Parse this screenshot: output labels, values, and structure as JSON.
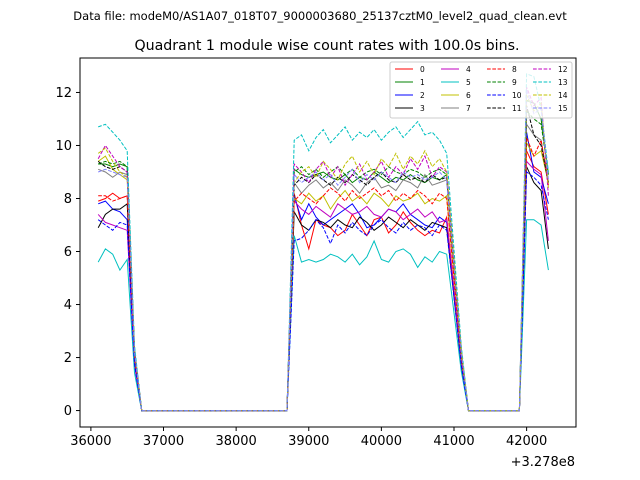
{
  "figure": {
    "suptitle": "Data file: modeM0/AS1A07_018T07_9000003680_25137cztM0_level2_quad_clean.evt",
    "title": "Quadrant 1 module wise count rates with 100.0s bins.",
    "x_offset_label": "+3.278e8"
  },
  "chart_data": {
    "type": "line",
    "title": "Quadrant 1 module wise count rates with 100.0s bins.",
    "xlabel": "",
    "ylabel": "",
    "x_offset": 327800000,
    "xlim": [
      35850,
      42680
    ],
    "ylim": [
      -0.62,
      13.3
    ],
    "x_ticks": [
      36000,
      37000,
      38000,
      39000,
      40000,
      41000,
      42000
    ],
    "x_tick_labels": [
      "36000",
      "37000",
      "38000",
      "39000",
      "40000",
      "41000",
      "42000"
    ],
    "y_ticks": [
      0,
      2,
      4,
      6,
      8,
      10,
      12
    ],
    "y_tick_labels": [
      "0",
      "2",
      "4",
      "6",
      "8",
      "10",
      "12"
    ],
    "grid": false,
    "legend_position": "top-right",
    "segments": [
      {
        "start": 36100,
        "n_before": 5,
        "drop": [
          36600,
          36700
        ],
        "zero_end": 38700,
        "rise": 38800,
        "n_mid": 22,
        "drop2": [
          41100,
          41200
        ],
        "zero2_end": 41900,
        "rise2": 42000,
        "n_end": 4
      },
      {
        "note": ""
      }
    ],
    "series": [
      {
        "name": "0",
        "color": "#ff0000",
        "dash": "solid",
        "values": {
          "a": [
            7.9,
            8.0,
            8.2,
            8.0,
            8.1
          ],
          "b": [
            8.2,
            7.0,
            6.1,
            7.2,
            7.0,
            6.9,
            6.6,
            6.8,
            7.4,
            7.0,
            6.6,
            7.2,
            7.3,
            6.7,
            7.0,
            7.5,
            7.1,
            6.8,
            6.6,
            6.8,
            6.7,
            7.3
          ],
          "c": [
            9.8,
            9.2,
            9.0,
            7.4
          ]
        }
      },
      {
        "name": "1",
        "color": "#008000",
        "dash": "solid",
        "values": {
          "a": [
            9.3,
            9.3,
            9.2,
            9.3,
            9.2
          ],
          "b": [
            9.1,
            8.9,
            8.8,
            8.9,
            9.0,
            8.8,
            8.7,
            8.9,
            8.6,
            8.8,
            8.7,
            9.0,
            8.8,
            8.6,
            8.8,
            8.7,
            8.9,
            8.7,
            8.6,
            8.8,
            8.7,
            8.9
          ],
          "c": [
            11.7,
            11.6,
            11.0,
            8.9
          ]
        }
      },
      {
        "name": "2",
        "color": "#0000ff",
        "dash": "solid",
        "values": {
          "a": [
            7.8,
            7.9,
            7.6,
            7.5,
            7.2
          ],
          "b": [
            8.1,
            7.2,
            7.8,
            7.3,
            7.0,
            7.2,
            7.4,
            7.6,
            7.8,
            7.4,
            6.9,
            7.0,
            7.3,
            7.6,
            7.5,
            7.8,
            7.4,
            7.2,
            7.0,
            6.9,
            7.3,
            7.1
          ],
          "c": [
            10.5,
            9.0,
            8.8,
            7.8
          ]
        }
      },
      {
        "name": "3",
        "color": "#000000",
        "dash": "solid",
        "values": {
          "a": [
            6.9,
            7.4,
            7.6,
            7.6,
            7.8
          ],
          "b": [
            7.5,
            7.0,
            6.8,
            7.2,
            7.1,
            6.9,
            7.2,
            7.0,
            6.9,
            7.3,
            7.1,
            6.8,
            7.0,
            7.3,
            7.1,
            6.9,
            7.2,
            7.0,
            6.8,
            7.1,
            7.0,
            6.9
          ],
          "c": [
            9.2,
            8.6,
            8.3,
            6.1
          ]
        }
      },
      {
        "name": "4",
        "color": "#c000c0",
        "dash": "solid",
        "values": {
          "a": [
            7.4,
            7.1,
            7.0,
            6.9,
            6.8
          ],
          "b": [
            7.9,
            7.6,
            7.4,
            7.7,
            7.5,
            7.3,
            7.8,
            7.6,
            7.4,
            7.5,
            7.7,
            7.4,
            7.3,
            7.6,
            7.5,
            7.2,
            7.4,
            7.6,
            7.3,
            7.5,
            7.1,
            7.2
          ],
          "c": [
            9.4,
            9.1,
            8.9,
            6.4
          ]
        }
      },
      {
        "name": "5",
        "color": "#00c0c0",
        "dash": "solid",
        "values": {
          "a": [
            5.6,
            6.1,
            5.9,
            5.3,
            5.7
          ],
          "b": [
            6.6,
            5.6,
            5.7,
            5.6,
            5.7,
            5.9,
            5.8,
            5.6,
            5.9,
            5.5,
            5.8,
            6.4,
            5.7,
            5.6,
            6.0,
            6.1,
            5.9,
            5.4,
            5.8,
            5.6,
            6.0,
            5.9
          ],
          "c": [
            7.2,
            7.2,
            7.0,
            5.3
          ]
        }
      },
      {
        "name": "6",
        "color": "#c0c000",
        "dash": "solid",
        "values": {
          "a": [
            9.4,
            9.6,
            9.1,
            8.9,
            8.7
          ],
          "b": [
            8.0,
            7.8,
            8.2,
            7.9,
            8.1,
            7.6,
            8.0,
            8.3,
            7.9,
            8.1,
            7.8,
            8.2,
            8.0,
            7.7,
            8.1,
            7.9,
            8.0,
            8.2,
            7.8,
            8.0,
            7.9,
            8.1
          ],
          "c": [
            10.1,
            9.6,
            9.8,
            8.6
          ]
        }
      },
      {
        "name": "7",
        "color": "#808080",
        "dash": "solid",
        "values": {
          "a": [
            9.1,
            9.0,
            8.8,
            9.0,
            8.9
          ],
          "b": [
            8.6,
            8.2,
            8.5,
            8.7,
            8.4,
            8.6,
            8.3,
            8.7,
            8.5,
            8.2,
            8.6,
            8.8,
            8.4,
            8.5,
            8.3,
            8.7,
            8.6,
            8.4,
            8.9,
            8.5,
            8.6,
            8.7
          ],
          "c": [
            10.8,
            10.4,
            10.2,
            8.6
          ]
        }
      },
      {
        "name": "8",
        "color": "#ff0000",
        "dash": "dashed",
        "values": {
          "a": [
            8.1,
            8.1,
            7.9,
            8.0,
            8.1
          ],
          "b": [
            7.9,
            8.2,
            8.0,
            7.8,
            8.1,
            8.4,
            8.2,
            7.9,
            8.3,
            8.0,
            8.2,
            8.4,
            8.1,
            8.3,
            7.9,
            8.2,
            8.0,
            8.3,
            8.1,
            7.8,
            8.2,
            8.0
          ],
          "c": [
            10.3,
            9.6,
            10.2,
            8.5
          ]
        }
      },
      {
        "name": "9",
        "color": "#008000",
        "dash": "dashed",
        "values": {
          "a": [
            9.3,
            9.4,
            9.3,
            9.4,
            9.2
          ],
          "b": [
            9.0,
            9.2,
            8.9,
            9.1,
            8.8,
            9.0,
            9.2,
            8.9,
            9.1,
            8.8,
            9.0,
            9.1,
            8.9,
            9.2,
            9.0,
            8.9,
            9.1,
            9.0,
            8.8,
            9.0,
            9.1,
            8.9
          ],
          "c": [
            11.3,
            11.0,
            10.8,
            8.9
          ]
        }
      },
      {
        "name": "10",
        "color": "#0000ff",
        "dash": "dashed",
        "values": {
          "a": [
            7.2,
            7.0,
            6.8,
            7.1,
            7.0
          ],
          "b": [
            6.4,
            6.5,
            6.8,
            7.2,
            6.9,
            6.3,
            7.0,
            6.7,
            7.1,
            6.8,
            6.6,
            7.0,
            7.2,
            6.9,
            6.7,
            7.1,
            6.8,
            7.0,
            6.9,
            6.6,
            7.0,
            6.8
          ],
          "c": [
            9.0,
            8.8,
            8.5,
            7.2
          ]
        }
      },
      {
        "name": "11",
        "color": "#000000",
        "dash": "dashed",
        "values": {
          "a": [
            9.4,
            9.2,
            9.1,
            9.2,
            9.0
          ],
          "b": [
            8.5,
            8.8,
            8.6,
            8.9,
            8.7,
            8.5,
            8.8,
            8.6,
            8.9,
            8.7,
            8.5,
            8.8,
            9.0,
            8.7,
            8.6,
            8.9,
            8.7,
            8.8,
            8.6,
            8.9,
            8.7,
            8.8
          ],
          "c": [
            11.5,
            10.4,
            10.0,
            8.6
          ]
        }
      },
      {
        "name": "12",
        "color": "#c000c0",
        "dash": "dashed",
        "values": {
          "a": [
            9.5,
            10.0,
            9.6,
            9.2,
            9.0
          ],
          "b": [
            9.3,
            9.0,
            8.6,
            9.1,
            9.4,
            8.8,
            9.2,
            8.5,
            8.9,
            9.3,
            8.7,
            9.0,
            9.4,
            8.8,
            9.2,
            8.9,
            9.5,
            9.1,
            9.6,
            8.8,
            9.2,
            9.0
          ],
          "c": [
            12.2,
            11.5,
            11.8,
            8.1
          ]
        }
      },
      {
        "name": "13",
        "color": "#00c0c0",
        "dash": "dashed",
        "values": {
          "a": [
            10.7,
            10.8,
            10.5,
            10.2,
            9.8
          ],
          "b": [
            10.2,
            10.4,
            9.8,
            10.3,
            10.6,
            10.1,
            10.4,
            10.7,
            10.2,
            10.5,
            10.3,
            10.6,
            10.2,
            10.5,
            10.7,
            10.3,
            10.6,
            10.9,
            10.4,
            10.5,
            10.2,
            9.7
          ],
          "c": [
            12.7,
            12.6,
            11.4,
            9.0
          ]
        }
      },
      {
        "name": "14",
        "color": "#c0c000",
        "dash": "dashed",
        "values": {
          "a": [
            9.7,
            9.9,
            9.4,
            9.0,
            8.8
          ],
          "b": [
            8.6,
            9.0,
            9.2,
            8.8,
            9.4,
            9.1,
            8.7,
            9.3,
            9.6,
            9.0,
            9.4,
            8.9,
            9.5,
            9.2,
            9.7,
            9.1,
            9.6,
            9.3,
            9.8,
            9.2,
            9.5,
            9.0
          ],
          "c": [
            11.9,
            11.3,
            11.6,
            8.4
          ]
        }
      },
      {
        "name": "15",
        "color": "#8080ff",
        "dash": "dashed",
        "values": {
          "a": [
            9.0,
            9.1,
            9.0,
            8.9,
            8.8
          ],
          "b": [
            8.9,
            8.6,
            8.8,
            9.0,
            8.7,
            8.9,
            8.5,
            8.8,
            9.1,
            8.6,
            8.9,
            8.7,
            9.0,
            8.8,
            8.6,
            9.0,
            8.8,
            8.9,
            8.7,
            8.8,
            9.0,
            8.7
          ],
          "c": [
            12.1,
            11.2,
            11.4,
            8.7
          ]
        }
      }
    ]
  }
}
